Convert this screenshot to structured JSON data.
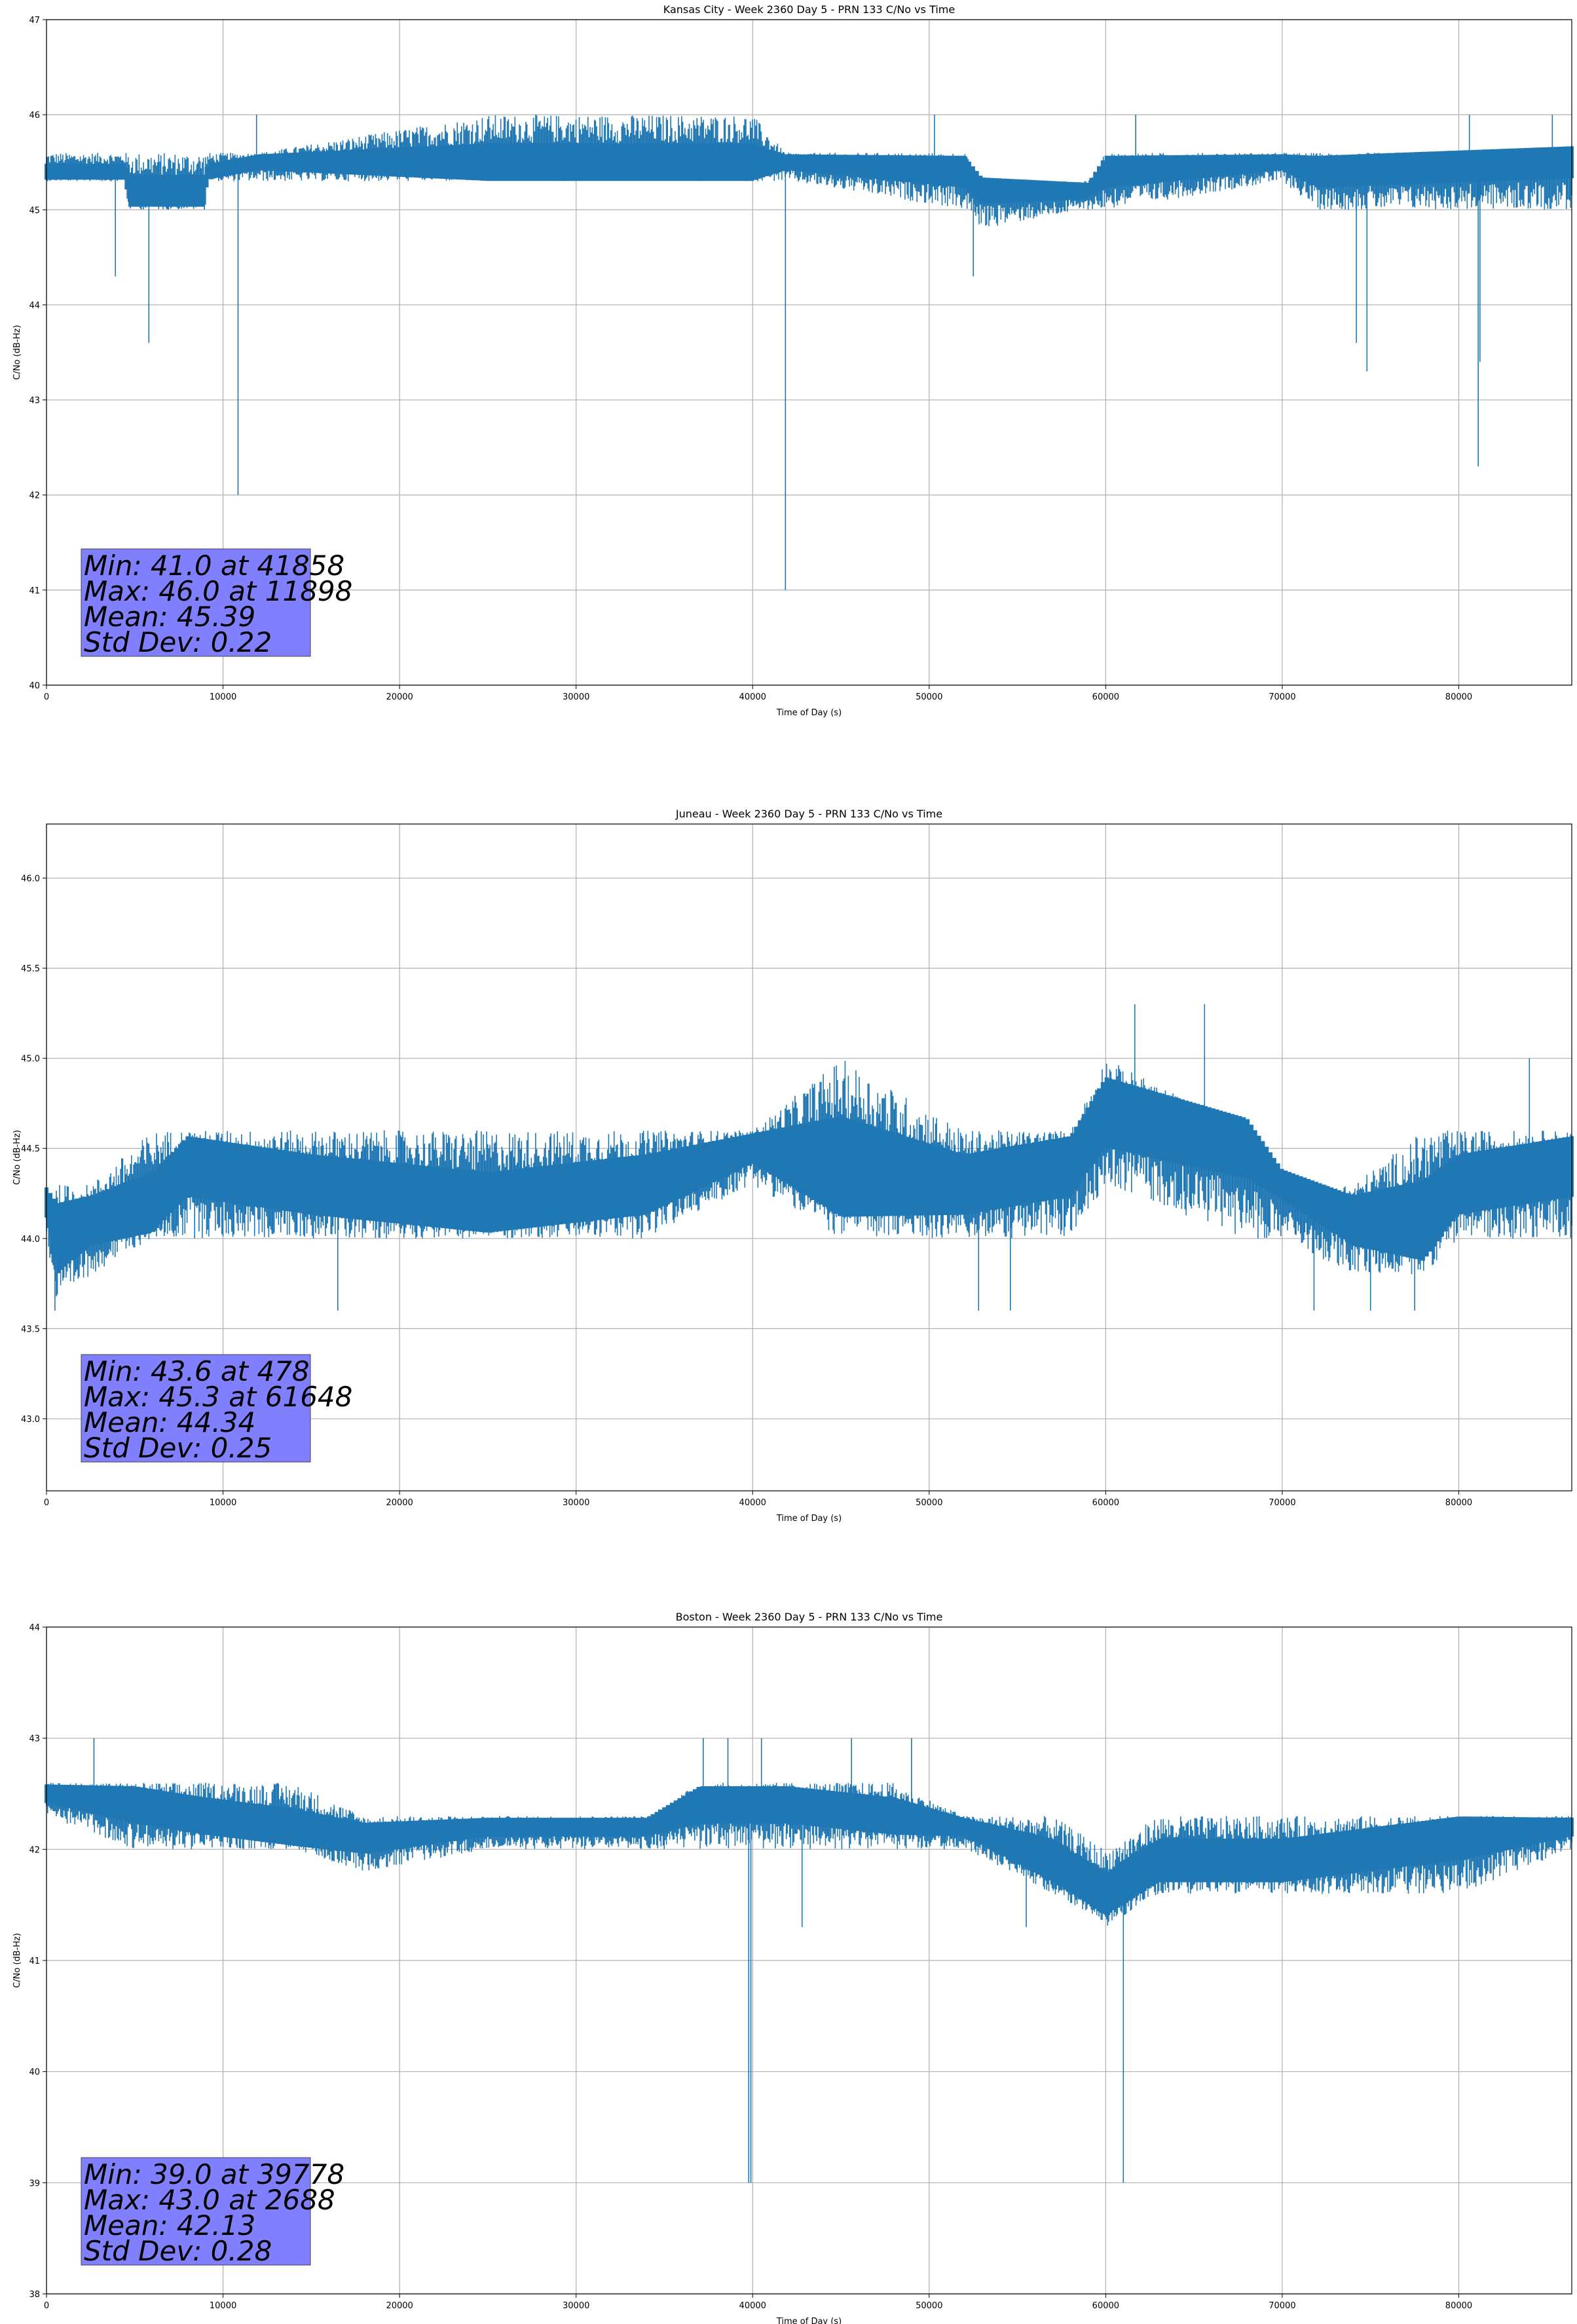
{
  "colors": {
    "series": "#1f77b4",
    "grid": "#b0b0b0",
    "stats_box": "#8080ff"
  },
  "chart_data": [
    {
      "type": "line",
      "title": "Kansas City - Week 2360 Day 5 - PRN 133 C/No vs Time",
      "xlabel": "Time of Day (s)",
      "ylabel": "C/No (dB-Hz)",
      "xlim": [
        0,
        86400
      ],
      "ylim": [
        40,
        47
      ],
      "xticks": [
        0,
        10000,
        20000,
        30000,
        40000,
        50000,
        60000,
        70000,
        80000
      ],
      "yticks": [
        40,
        41,
        42,
        43,
        44,
        45,
        46,
        47
      ],
      "ytick_labels": [
        "40",
        "41",
        "42",
        "43",
        "44",
        "45",
        "46",
        "47"
      ],
      "grid": true,
      "stats": [
        "Min: 41.0 at 41858",
        "Max: 46.0 at 11898",
        "Mean: 45.39",
        "Std Dev: 0.22"
      ],
      "series": [
        {
          "values_x": [
            0,
            4500,
            4600,
            9000,
            9100,
            12000,
            25000,
            40000,
            41858,
            42000,
            52000,
            53000,
            59000,
            60000,
            70000,
            72000,
            86400
          ],
          "values_y": [
            45.4,
            45.4,
            45.2,
            45.2,
            45.4,
            45.5,
            45.5,
            45.5,
            45.5,
            45.5,
            45.4,
            45.2,
            45.2,
            45.4,
            45.5,
            45.4,
            45.5
          ],
          "band_lo": [
            45.3,
            45.3,
            45.0,
            45.0,
            45.3,
            45.3,
            45.3,
            45.3,
            45.3,
            45.3,
            45.0,
            44.8,
            45.0,
            45.0,
            45.3,
            45.0,
            45.0
          ],
          "band_hi": [
            45.6,
            45.6,
            45.6,
            45.6,
            45.6,
            45.6,
            46.0,
            46.0,
            45.6,
            45.6,
            45.6,
            45.3,
            45.3,
            45.6,
            45.6,
            45.6,
            45.6
          ],
          "spikes": [
            {
              "x": 3900,
              "y": 44.3
            },
            {
              "x": 5800,
              "y": 43.6
            },
            {
              "x": 10850,
              "y": 42.0
            },
            {
              "x": 41858,
              "y": 41.0
            },
            {
              "x": 52500,
              "y": 44.3
            },
            {
              "x": 74200,
              "y": 43.6
            },
            {
              "x": 74800,
              "y": 43.3
            },
            {
              "x": 81100,
              "y": 42.3
            },
            {
              "x": 81200,
              "y": 43.4
            },
            {
              "x": 11898,
              "y": 46.0
            },
            {
              "x": 50300,
              "y": 46.0
            },
            {
              "x": 61700,
              "y": 46.0
            },
            {
              "x": 80600,
              "y": 46.0
            },
            {
              "x": 85300,
              "y": 46.0
            }
          ]
        }
      ]
    },
    {
      "type": "line",
      "title": "Juneau - Week 2360 Day 5 - PRN 133 C/No vs Time",
      "xlabel": "Time of Day (s)",
      "ylabel": "C/No (dB-Hz)",
      "xlim": [
        0,
        86400
      ],
      "ylim": [
        42.6,
        46.3
      ],
      "xticks": [
        0,
        10000,
        20000,
        30000,
        40000,
        50000,
        60000,
        70000,
        80000
      ],
      "yticks": [
        43.0,
        43.5,
        44.0,
        44.5,
        45.0,
        45.5,
        46.0
      ],
      "ytick_labels": [
        "43.0",
        "43.5",
        "44.0",
        "44.5",
        "45.0",
        "45.5",
        "46.0"
      ],
      "grid": true,
      "stats": [
        "Min: 43.6 at 478",
        "Max: 45.3 at 61648",
        "Mean: 44.34",
        "Std Dev: 0.25"
      ],
      "series": [
        {
          "values_x": [
            0,
            600,
            2500,
            6000,
            8000,
            15000,
            25000,
            34000,
            40000,
            45000,
            52000,
            58000,
            60000,
            68000,
            70000,
            74000,
            78000,
            80000,
            86400
          ],
          "values_y": [
            44.2,
            44.0,
            44.1,
            44.2,
            44.4,
            44.3,
            44.2,
            44.3,
            44.5,
            44.4,
            44.3,
            44.4,
            44.7,
            44.5,
            44.3,
            44.1,
            44.1,
            44.3,
            44.4
          ],
          "band_lo": [
            44.0,
            43.6,
            43.8,
            44.0,
            44.0,
            44.0,
            44.0,
            44.0,
            44.3,
            44.0,
            44.0,
            44.0,
            44.3,
            44.0,
            44.0,
            43.8,
            43.8,
            44.0,
            44.0
          ],
          "band_hi": [
            44.3,
            44.3,
            44.3,
            44.6,
            44.6,
            44.6,
            44.6,
            44.6,
            44.6,
            45.0,
            44.6,
            44.6,
            45.0,
            44.6,
            44.3,
            44.3,
            44.6,
            44.6,
            44.6
          ],
          "spikes": [
            {
              "x": 478,
              "y": 43.6
            },
            {
              "x": 16500,
              "y": 43.6
            },
            {
              "x": 52800,
              "y": 43.6
            },
            {
              "x": 54600,
              "y": 43.6
            },
            {
              "x": 71800,
              "y": 43.6
            },
            {
              "x": 75000,
              "y": 43.6
            },
            {
              "x": 77500,
              "y": 43.6
            },
            {
              "x": 61648,
              "y": 45.3
            },
            {
              "x": 65600,
              "y": 45.3
            },
            {
              "x": 84000,
              "y": 45.0
            }
          ]
        }
      ]
    },
    {
      "type": "line",
      "title": "Boston - Week 2360 Day 5 - PRN 133 C/No vs Time",
      "xlabel": "Time of Day (s)",
      "ylabel": "C/No (dB-Hz)",
      "xlim": [
        0,
        86400
      ],
      "ylim": [
        38,
        44
      ],
      "xticks": [
        0,
        10000,
        20000,
        30000,
        40000,
        50000,
        60000,
        70000,
        80000
      ],
      "yticks": [
        38,
        39,
        40,
        41,
        42,
        43,
        44
      ],
      "ytick_labels": [
        "38",
        "39",
        "40",
        "41",
        "42",
        "43",
        "44"
      ],
      "grid": true,
      "stats": [
        "Min: 39.0 at 39778",
        "Max: 43.0 at 2688",
        "Mean: 42.13",
        "Std Dev: 0.28"
      ],
      "series": [
        {
          "values_x": [
            0,
            5000,
            9000,
            14000,
            18000,
            25000,
            34000,
            37000,
            42000,
            48000,
            52000,
            57000,
            60000,
            63000,
            70000,
            80000,
            86400
          ],
          "values_y": [
            42.5,
            42.4,
            42.3,
            42.2,
            42.1,
            42.2,
            42.2,
            42.4,
            42.4,
            42.3,
            42.2,
            41.9,
            41.6,
            41.9,
            41.9,
            42.1,
            42.2
          ],
          "band_lo": [
            42.3,
            42.0,
            42.0,
            42.0,
            41.8,
            42.0,
            42.0,
            42.0,
            42.0,
            42.0,
            42.0,
            41.6,
            41.3,
            41.6,
            41.6,
            41.6,
            42.0
          ],
          "band_hi": [
            42.6,
            42.6,
            42.6,
            42.6,
            42.3,
            42.3,
            42.3,
            42.6,
            42.6,
            42.6,
            42.3,
            42.3,
            42.0,
            42.3,
            42.3,
            42.3,
            42.3
          ],
          "spikes": [
            {
              "x": 2688,
              "y": 43.0
            },
            {
              "x": 37200,
              "y": 43.0
            },
            {
              "x": 38600,
              "y": 43.0
            },
            {
              "x": 40500,
              "y": 43.0
            },
            {
              "x": 45600,
              "y": 43.0
            },
            {
              "x": 49000,
              "y": 43.0
            },
            {
              "x": 39778,
              "y": 39.0
            },
            {
              "x": 39900,
              "y": 39.0
            },
            {
              "x": 61000,
              "y": 39.0
            },
            {
              "x": 42800,
              "y": 41.3
            },
            {
              "x": 55500,
              "y": 41.3
            }
          ]
        }
      ]
    }
  ]
}
